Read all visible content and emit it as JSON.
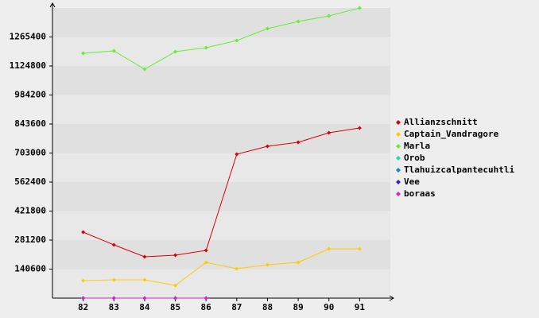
{
  "chart_data": {
    "type": "line",
    "categories": [
      "82",
      "83",
      "84",
      "85",
      "86",
      "87",
      "88",
      "89",
      "90",
      "91"
    ],
    "series": [
      {
        "name": "Allianzschnitt",
        "color": "#dd0000",
        "values": [
          319700,
          258100,
          200300,
          208000,
          231100,
          697200,
          735700,
          755000,
          801200,
          824300
        ]
      },
      {
        "name": "Captain_Vandragore",
        "color": "#ffcc00",
        "values": [
          84700,
          88600,
          88600,
          61600,
          173300,
          142500,
          161800,
          173300,
          238800,
          238800
        ]
      },
      {
        "name": "Marla",
        "color": "#66ee33",
        "values": [
          1186400,
          1198000,
          1109400,
          1194100,
          1213400,
          1248000,
          1305800,
          1340500,
          1367500,
          1406000
        ]
      },
      {
        "name": "Orob",
        "color": "#22ddaa",
        "values": [
          0,
          null,
          null,
          null,
          null,
          null,
          null,
          null,
          null,
          null
        ]
      },
      {
        "name": "Tlahuizcalpantecuhtli",
        "color": "#1188cc",
        "values": [
          0,
          0,
          0,
          0,
          0,
          null,
          null,
          null,
          null,
          null
        ]
      },
      {
        "name": "Vee",
        "color": "#3322cc",
        "values": [
          0,
          0,
          0,
          0,
          0,
          null,
          null,
          null,
          null,
          null
        ]
      },
      {
        "name": "boraas",
        "color": "#dd22cc",
        "values": [
          0,
          0,
          0,
          0,
          0,
          null,
          null,
          null,
          null,
          null
        ]
      }
    ],
    "ylim": [
      0,
      1406000
    ],
    "yticks": [
      140600,
      281200,
      421800,
      562400,
      703000,
      843600,
      984200,
      1124800,
      1265400
    ],
    "legend": "right"
  }
}
